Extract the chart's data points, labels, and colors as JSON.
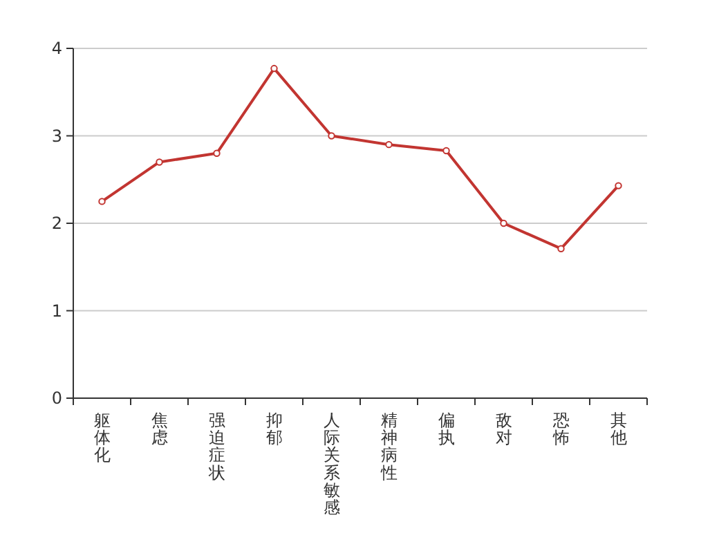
{
  "chart_data": {
    "type": "line",
    "categories": [
      "躯体化",
      "焦虑",
      "强迫症状",
      "抑郁",
      "人际关系敏感",
      "精神病性",
      "偏执",
      "敌对",
      "恐怖",
      "其他"
    ],
    "values": [
      2.25,
      2.7,
      2.8,
      3.77,
      3.0,
      2.9,
      2.83,
      2.0,
      1.71,
      2.43
    ],
    "color": "#c23531",
    "ylim": [
      0,
      4
    ],
    "yticks": [
      0,
      1,
      2,
      3,
      4
    ],
    "grid": "y",
    "marker": "circle",
    "line_style": "solid"
  }
}
